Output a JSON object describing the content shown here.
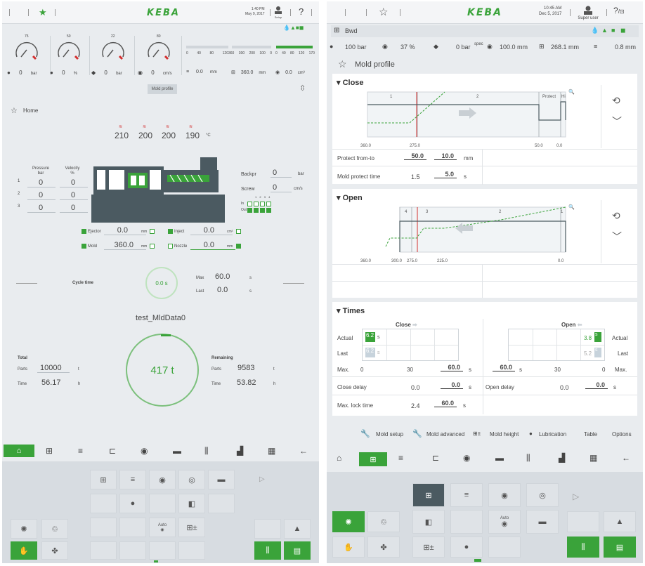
{
  "left": {
    "topbar": {
      "time": "1:40 PM",
      "date": "May 9, 2017",
      "user": "Setup",
      "help": "?",
      "logo": "KEBA"
    },
    "gauges": [
      {
        "max": "75",
        "val": "0",
        "unit": "bar",
        "icon": "pressure-icon"
      },
      {
        "max": "50",
        "val": "0",
        "unit": "%",
        "icon": "velocity-icon"
      },
      {
        "max": "22",
        "val": "0",
        "unit": "bar",
        "icon": "backpressure-icon"
      },
      {
        "max": "80",
        "val": "0",
        "unit": "cm/s",
        "icon": "speed-icon"
      }
    ],
    "gauge_scale": {
      "lo": "0",
      "hi": "100"
    },
    "bars": [
      {
        "ticks": [
          "0",
          "40",
          "80",
          "120"
        ],
        "val": "0.0",
        "unit": "mm",
        "ticks2": [
          "360",
          "300",
          "200",
          "100",
          "0"
        ],
        "val2": "360.0",
        "unit2": "mm",
        "ticks3": [
          "0",
          "40",
          "80",
          "120",
          "170"
        ],
        "val3": "0.0",
        "unit3": "cm³"
      }
    ],
    "mold_profile_btn": "Mold profile",
    "home_label": "Home",
    "temps": [
      "210",
      "200",
      "200",
      "190"
    ],
    "temp_unit": "°C",
    "pv_headers": {
      "p": "Pressure",
      "pu": "bar",
      "v": "Velocity",
      "vu": "%"
    },
    "pv_rows": [
      {
        "n": "1",
        "p": "0",
        "v": "0"
      },
      {
        "n": "2",
        "p": "0",
        "v": "0"
      },
      {
        "n": "3",
        "p": "0",
        "v": "0"
      }
    ],
    "backpr": {
      "label": "Backpr",
      "val": "0",
      "unit": "bar"
    },
    "screw": {
      "label": "Screw",
      "val": "0",
      "unit": "cm/s"
    },
    "io": {
      "in": "In",
      "out": "Out",
      "nums": [
        "1",
        "2",
        "3",
        "4"
      ]
    },
    "axes": [
      {
        "label": "Ejector",
        "val": "0.0",
        "unit": "mm"
      },
      {
        "label": "Inject",
        "val": "0.0",
        "unit": "cm³"
      },
      {
        "label": "Mold",
        "val": "360.0",
        "unit": "mm"
      },
      {
        "label": "Nozzle",
        "val": "0.0",
        "unit": "mm"
      }
    ],
    "cycle": {
      "label": "Cycle time",
      "val": "0.0 s",
      "max_label": "Max",
      "max": "60.0",
      "last_label": "Last",
      "last": "0.0",
      "unit": "s"
    },
    "dataset": "test_MldData0",
    "total": {
      "title": "Total",
      "parts_label": "Parts",
      "parts": "10000",
      "parts_unit": "t",
      "time_label": "Time",
      "time": "56.17",
      "time_unit": "h"
    },
    "remaining": {
      "title": "Remaining",
      "parts_label": "Parts",
      "parts": "9583",
      "parts_unit": "t",
      "time_label": "Time",
      "time": "53.82",
      "time_unit": "h"
    },
    "center_count": "417 t",
    "nav_back": "←",
    "auto_label": "Auto"
  },
  "right": {
    "topbar": {
      "time": "10:45 AM",
      "date": "Dec 5, 2017",
      "user": "Super user",
      "logo": "KEBA",
      "help": "?"
    },
    "mode": "Bwd",
    "status": [
      {
        "val": "100 bar",
        "icon": "pressure-icon"
      },
      {
        "val": "37 %",
        "icon": "velocity-icon"
      },
      {
        "val": "0 bar",
        "sub": "spec",
        "icon": "backpressure-icon"
      },
      {
        "val": "100.0 mm",
        "icon": "screw-icon"
      },
      {
        "val": "268.1 mm",
        "icon": "mold-icon"
      },
      {
        "val": "0.8 mm",
        "icon": "ejector-icon"
      }
    ],
    "page_title": "Mold profile",
    "close": {
      "title": "Close",
      "seg_labels": [
        "1",
        "2",
        "Protect",
        "Hi"
      ],
      "ticks": [
        "360.0",
        "275.0",
        "50.0",
        "0.0"
      ],
      "protect_label": "Protect from-to",
      "protect_from": "50.0",
      "protect_to": "10.0",
      "protect_unit": "mm",
      "mp_label": "Mold protect time",
      "mp_actual": "1.5",
      "mp_set": "5.0",
      "mp_unit": "s"
    },
    "open": {
      "title": "Open",
      "seg_labels": [
        "4",
        "3",
        "2",
        "1"
      ],
      "ticks": [
        "360.0",
        "300.0",
        "275.0",
        "225.0",
        "0.0"
      ]
    },
    "times": {
      "title": "Times",
      "close_label": "Close",
      "open_label": "Open",
      "actual_label": "Actual",
      "last_label": "Last",
      "close_actual": "6.2",
      "close_last": "6.2",
      "open_actual": "3.8",
      "open_last": "5.2",
      "s": "s",
      "max_label": "Max.",
      "max_row": [
        "0",
        "30",
        "60.0",
        "s"
      ],
      "max_row_r": [
        "60.0",
        "s",
        "30",
        "0"
      ],
      "close_delay_label": "Close delay",
      "close_delay": "0.0",
      "close_delay_set": "0.0",
      "open_delay_label": "Open delay",
      "open_delay": "0.0",
      "open_delay_set": "0.0",
      "lock_label": "Max. lock time",
      "lock": "2.4",
      "lock_set": "60.0"
    },
    "subnav": [
      "Mold setup",
      "Mold advanced",
      "Mold height",
      "Lubrication",
      "Table",
      "Options"
    ],
    "nav_back": "←",
    "auto_label": "Auto"
  },
  "colors": {
    "accent": "#3aa33a",
    "machine": "#4b5a61",
    "red": "#d32f2f"
  }
}
